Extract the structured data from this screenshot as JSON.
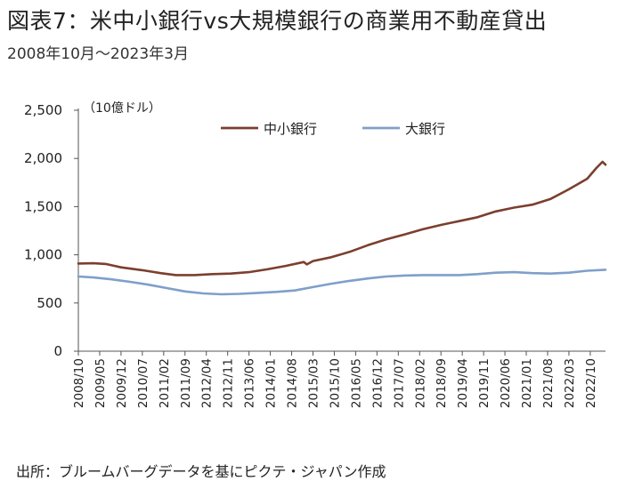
{
  "title": "図表7：米中小銀行vs大規模銀行の商業用不動産貸出",
  "subtitle": "2008年10月～2023年3月",
  "source": "出所：ブルームバーグデータを基にピクテ・ジャパン作成",
  "chart_data": {
    "type": "line",
    "unit_label": "（10億ドル）",
    "ylim": [
      0,
      2500
    ],
    "yticks": [
      0,
      500,
      1000,
      1500,
      2000,
      2500
    ],
    "ytick_labels": [
      "0",
      "500",
      "1,000",
      "1,500",
      "2,000",
      "2,500"
    ],
    "grid": false,
    "legend_position": "top-center",
    "x_start": "2008-10",
    "x_end": "2023-03",
    "xtick_labels": [
      "2008/10",
      "2009/05",
      "2009/12",
      "2010/07",
      "2011/02",
      "2011/09",
      "2012/04",
      "2012/11",
      "2013/06",
      "2014/01",
      "2014/08",
      "2015/03",
      "2015/10",
      "2016/05",
      "2016/12",
      "2017/07",
      "2018/02",
      "2018/09",
      "2019/04",
      "2019/11",
      "2020/06",
      "2021/01",
      "2021/08",
      "2022/03",
      "2022/10"
    ],
    "series": [
      {
        "name": "中小銀行",
        "color": "#7b3f2e",
        "points": [
          [
            "2008-10",
            910
          ],
          [
            "2009-03",
            912
          ],
          [
            "2009-07",
            905
          ],
          [
            "2009-12",
            870
          ],
          [
            "2010-07",
            840
          ],
          [
            "2011-01",
            810
          ],
          [
            "2011-06",
            790
          ],
          [
            "2011-12",
            790
          ],
          [
            "2012-06",
            800
          ],
          [
            "2012-12",
            805
          ],
          [
            "2013-06",
            820
          ],
          [
            "2013-12",
            850
          ],
          [
            "2014-06",
            885
          ],
          [
            "2014-12",
            925
          ],
          [
            "2015-01",
            900
          ],
          [
            "2015-03",
            935
          ],
          [
            "2015-09",
            975
          ],
          [
            "2016-03",
            1030
          ],
          [
            "2016-09",
            1100
          ],
          [
            "2017-03",
            1160
          ],
          [
            "2017-09",
            1210
          ],
          [
            "2018-03",
            1265
          ],
          [
            "2018-09",
            1310
          ],
          [
            "2019-03",
            1350
          ],
          [
            "2019-09",
            1390
          ],
          [
            "2020-03",
            1450
          ],
          [
            "2020-09",
            1490
          ],
          [
            "2021-03",
            1520
          ],
          [
            "2021-09",
            1580
          ],
          [
            "2022-03",
            1680
          ],
          [
            "2022-09",
            1790
          ],
          [
            "2022-12",
            1900
          ],
          [
            "2023-02",
            1965
          ],
          [
            "2023-03",
            1935
          ]
        ]
      },
      {
        "name": "大銀行",
        "color": "#7f9fca",
        "points": [
          [
            "2008-10",
            775
          ],
          [
            "2009-03",
            765
          ],
          [
            "2009-09",
            745
          ],
          [
            "2010-03",
            720
          ],
          [
            "2010-09",
            690
          ],
          [
            "2011-03",
            655
          ],
          [
            "2011-09",
            620
          ],
          [
            "2012-03",
            600
          ],
          [
            "2012-09",
            590
          ],
          [
            "2013-03",
            595
          ],
          [
            "2013-09",
            605
          ],
          [
            "2014-03",
            615
          ],
          [
            "2014-09",
            630
          ],
          [
            "2015-03",
            665
          ],
          [
            "2015-09",
            700
          ],
          [
            "2016-03",
            730
          ],
          [
            "2016-09",
            755
          ],
          [
            "2017-03",
            775
          ],
          [
            "2017-09",
            785
          ],
          [
            "2018-03",
            790
          ],
          [
            "2018-09",
            790
          ],
          [
            "2019-03",
            790
          ],
          [
            "2019-09",
            800
          ],
          [
            "2020-03",
            815
          ],
          [
            "2020-09",
            820
          ],
          [
            "2021-03",
            810
          ],
          [
            "2021-09",
            805
          ],
          [
            "2022-03",
            815
          ],
          [
            "2022-09",
            835
          ],
          [
            "2023-03",
            845
          ]
        ]
      }
    ]
  }
}
